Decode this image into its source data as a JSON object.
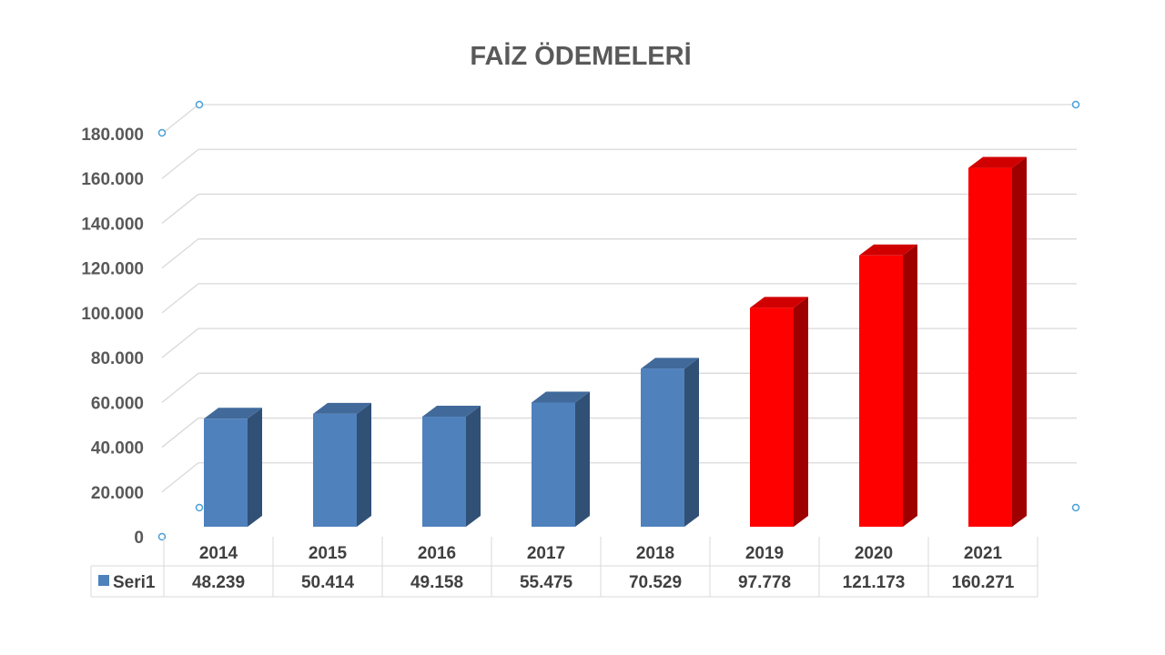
{
  "chart_data": {
    "type": "bar",
    "title": "FAİZ ÖDEMELERİ",
    "categories": [
      "2014",
      "2015",
      "2016",
      "2017",
      "2018",
      "2019",
      "2020",
      "2021"
    ],
    "series": [
      {
        "name": "Seri1",
        "values": [
          48239,
          50414,
          49158,
          55475,
          70529,
          97778,
          121173,
          160271
        ]
      }
    ],
    "value_labels": [
      "48.239",
      "50.414",
      "49.158",
      "55.475",
      "70.529",
      "97.778",
      "121.173",
      "160.271"
    ],
    "y_ticks": [
      0,
      20000,
      40000,
      60000,
      80000,
      100000,
      120000,
      140000,
      160000,
      180000
    ],
    "y_tick_labels": [
      "0",
      "20.000",
      "40.000",
      "60.000",
      "80.000",
      "100.000",
      "120.000",
      "140.000",
      "160.000",
      "180.000"
    ],
    "ylim": [
      0,
      180000
    ],
    "grid": true,
    "legend": "data-table",
    "bar_colors": [
      "#4f81bd",
      "#4f81bd",
      "#4f81bd",
      "#4f81bd",
      "#4f81bd",
      "#ff0000",
      "#ff0000",
      "#ff0000"
    ]
  }
}
